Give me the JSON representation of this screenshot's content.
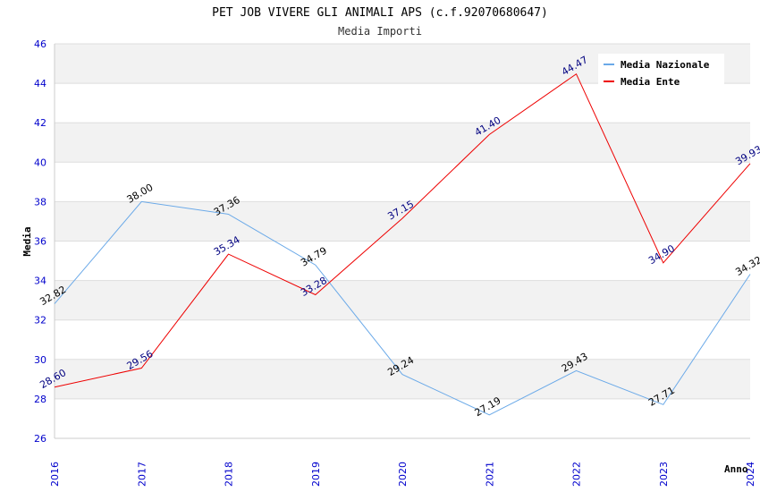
{
  "chart_data": {
    "type": "line",
    "title": "PET JOB VIVERE GLI ANIMALI APS (c.f.92070680647)",
    "subtitle": "Media Importi",
    "xlabel": "Anno",
    "ylabel": "Media",
    "x": [
      "2016",
      "2017",
      "2018",
      "2019",
      "2020",
      "2021",
      "2022",
      "2023",
      "2024"
    ],
    "ylim": [
      26,
      46
    ],
    "yticks": [
      26,
      28,
      30,
      32,
      34,
      36,
      38,
      40,
      42,
      44,
      46
    ],
    "grid": true,
    "legend_position": "top-right",
    "series": [
      {
        "name": "Media Nazionale",
        "color": "#6aa9e8",
        "label_color": "#000000",
        "values": [
          32.82,
          38.0,
          37.36,
          34.79,
          29.24,
          27.19,
          29.43,
          27.71,
          34.32
        ],
        "labels": [
          "32.82",
          "38.00",
          "37.36",
          "34.79",
          "29.24",
          "27.19",
          "29.43",
          "27.71",
          "34.32"
        ]
      },
      {
        "name": "Media Ente",
        "color": "#ee0000",
        "label_color": "#000080",
        "values": [
          28.6,
          29.56,
          35.34,
          33.28,
          37.15,
          41.4,
          44.47,
          34.9,
          39.93
        ],
        "labels": [
          "28.60",
          "29.56",
          "35.34",
          "33.28",
          "37.15",
          "41.40",
          "44.47",
          "34.90",
          "39.93"
        ]
      }
    ]
  }
}
